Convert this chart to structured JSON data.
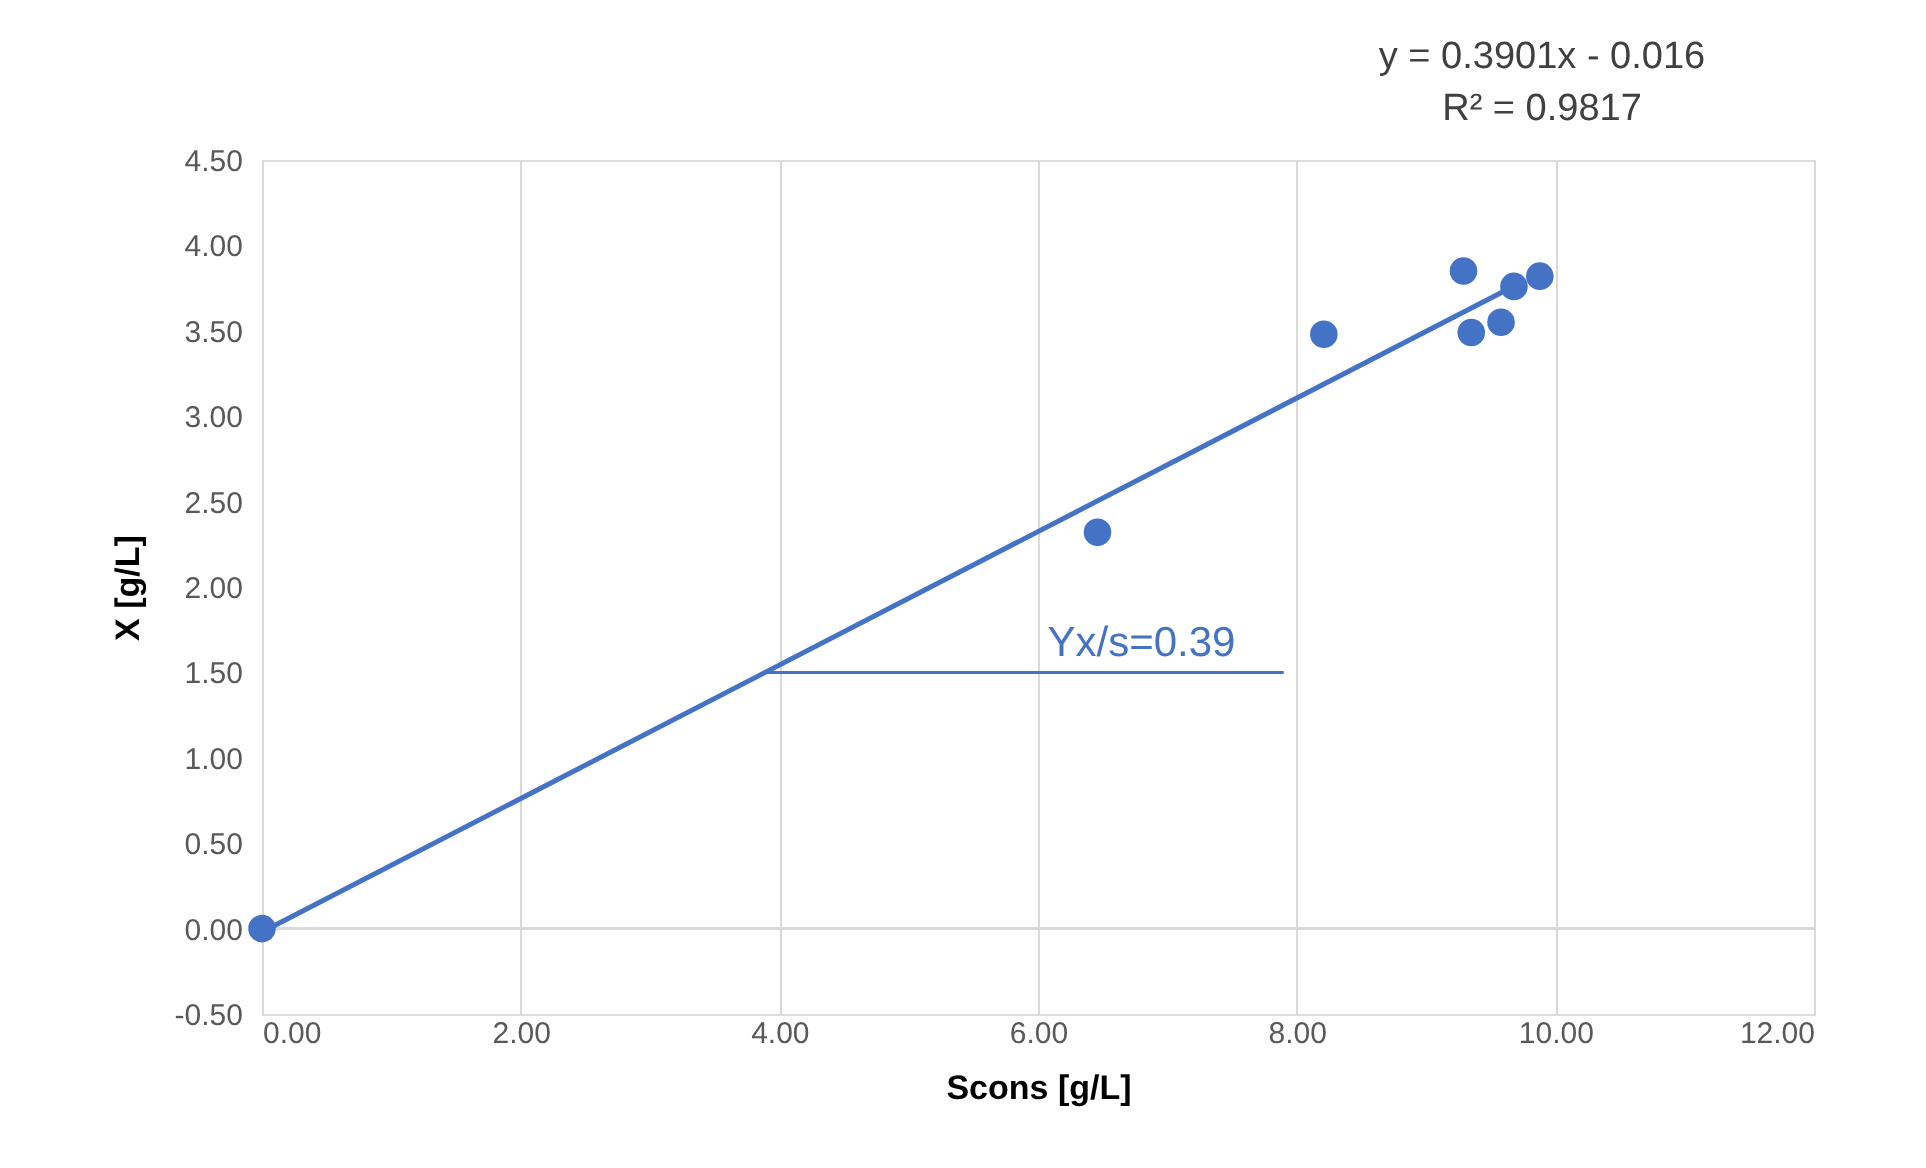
{
  "chart_data": {
    "type": "scatter",
    "xlabel": "Scons [g/L]",
    "ylabel": "X  [g/L]",
    "xlim": [
      0,
      12
    ],
    "xticks": [
      {
        "value": 0,
        "label": "0.00"
      },
      {
        "value": 2,
        "label": "2.00"
      },
      {
        "value": 4,
        "label": "4.00"
      },
      {
        "value": 6,
        "label": "6.00"
      },
      {
        "value": 8,
        "label": "8.00"
      },
      {
        "value": 10,
        "label": "10.00"
      },
      {
        "value": 12,
        "label": "12.00"
      }
    ],
    "ylim": [
      -0.5,
      4.5
    ],
    "yticks": [
      {
        "value": -0.5,
        "label": "-0.50"
      },
      {
        "value": 0,
        "label": "0.00"
      },
      {
        "value": 0.5,
        "label": "0.50"
      },
      {
        "value": 1,
        "label": "1.00"
      },
      {
        "value": 1.5,
        "label": "1.50"
      },
      {
        "value": 2,
        "label": "2.00"
      },
      {
        "value": 2.5,
        "label": "2.50"
      },
      {
        "value": 3,
        "label": "3.00"
      },
      {
        "value": 3.5,
        "label": "3.50"
      },
      {
        "value": 4,
        "label": "4.00"
      },
      {
        "value": 4.5,
        "label": "4.50"
      }
    ],
    "grid": "x",
    "marker": "circle",
    "series": [
      {
        "type": "scatter",
        "color": "#4472c4",
        "x": [
          0,
          6.46,
          8.21,
          9.29,
          9.35,
          9.58,
          9.68,
          9.88
        ],
        "values": [
          0,
          2.32,
          3.48,
          3.85,
          3.49,
          3.55,
          3.76,
          3.82
        ]
      },
      {
        "type": "line",
        "color": "#4472c4",
        "marker": "none",
        "x": [
          0,
          9.7
        ],
        "values": [
          -0.02,
          3.77
        ]
      },
      {
        "type": "line",
        "color": "#4472c4",
        "marker": "none",
        "x": [
          3.9,
          7.9
        ],
        "values": [
          1.5,
          1.5
        ]
      }
    ],
    "ref_lines": [
      {
        "axis": "y",
        "value": 0,
        "color": "#d9d9d9"
      }
    ],
    "annotations": [
      "y = 0.3901x - 0.016",
      "R² = 0.9817",
      {
        "text": "Yx/s=0.39",
        "x": 6.8,
        "y": 1.5
      }
    ]
  }
}
